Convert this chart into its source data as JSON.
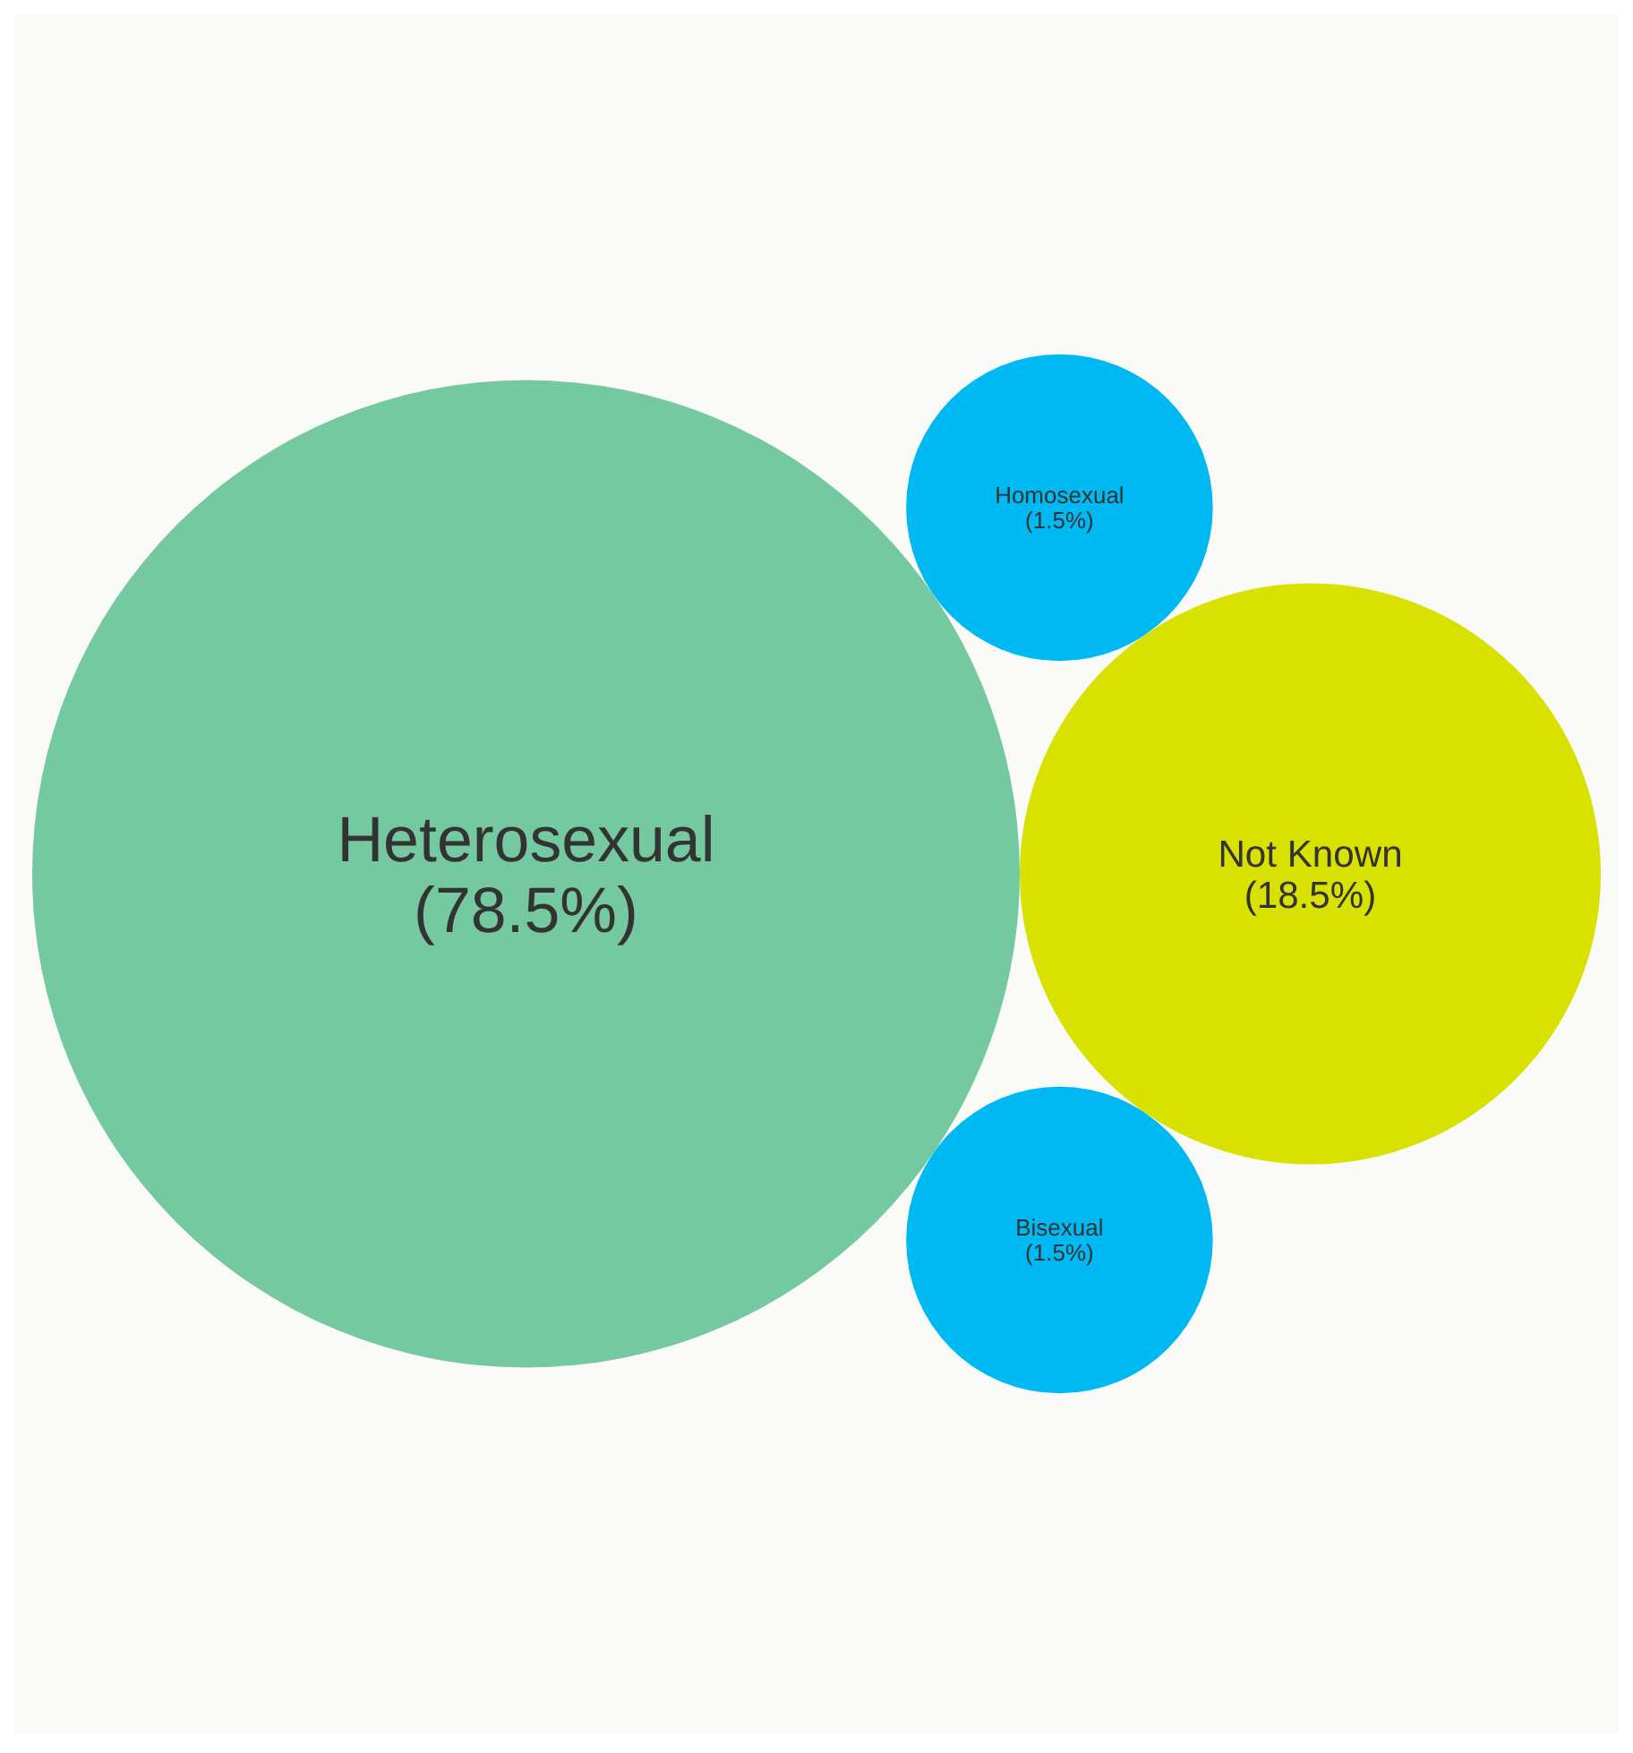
{
  "chart_data": {
    "type": "other",
    "categories": [
      "Heterosexual",
      "Not Known",
      "Bisexual",
      "Homosexual"
    ],
    "values": [
      78.5,
      18.5,
      1.5,
      1.5
    ],
    "value_labels": [
      "(78.5%)",
      "(18.5%)",
      "(1.5%)",
      "(1.5%)"
    ],
    "colors": [
      "#74c9a0",
      "#d8e100",
      "#00b9f2",
      "#00b9f2"
    ]
  }
}
